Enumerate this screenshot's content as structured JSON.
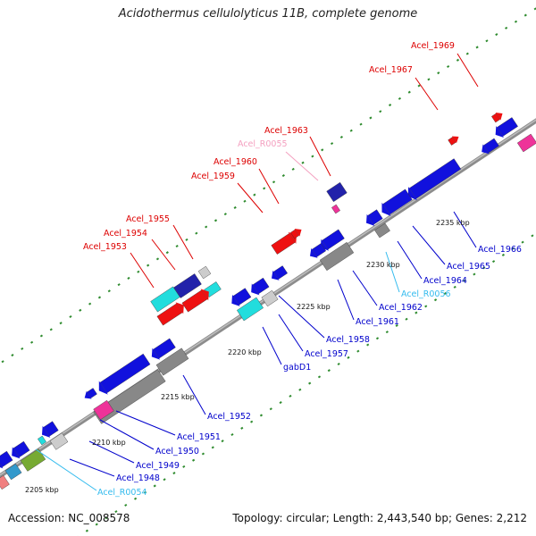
{
  "map": {
    "title": "Acidothermus cellulolyticus 11B, complete genome",
    "accession": "Accession: NC_008578",
    "summary": "Topology: circular; Length: 2,443,540 bp; Genes: 2,212"
  },
  "scale_ticks": [
    "2205 kbp",
    "2210 kbp",
    "2215 kbp",
    "2220 kbp",
    "2225 kbp",
    "2230 kbp",
    "2235 kbp"
  ],
  "labels_upper": [
    {
      "text": "Acel_1953",
      "color": "#dd0000"
    },
    {
      "text": "Acel_1954",
      "color": "#dd0000"
    },
    {
      "text": "Acel_1955",
      "color": "#dd0000"
    },
    {
      "text": "Acel_1959",
      "color": "#dd0000"
    },
    {
      "text": "Acel_1960",
      "color": "#dd0000"
    },
    {
      "text": "Acel_R0055",
      "color": "#f4a0c0"
    },
    {
      "text": "Acel_1963",
      "color": "#dd0000"
    },
    {
      "text": "Acel_1967",
      "color": "#dd0000"
    },
    {
      "text": "Acel_1969",
      "color": "#dd0000"
    }
  ],
  "labels_lower": [
    {
      "text": "Acel_R0054",
      "color": "#33bbee"
    },
    {
      "text": "Acel_1948",
      "color": "#0000cc"
    },
    {
      "text": "Acel_1949",
      "color": "#0000cc"
    },
    {
      "text": "Acel_1950",
      "color": "#0000cc"
    },
    {
      "text": "Acel_1951",
      "color": "#0000cc"
    },
    {
      "text": "Acel_1952",
      "color": "#0000cc"
    },
    {
      "text": "gabD1",
      "color": "#0000cc"
    },
    {
      "text": "Acel_1957",
      "color": "#0000cc"
    },
    {
      "text": "Acel_1958",
      "color": "#0000cc"
    },
    {
      "text": "Acel_1961",
      "color": "#0000cc"
    },
    {
      "text": "Acel_1962",
      "color": "#0000cc"
    },
    {
      "text": "Acel_R0056",
      "color": "#33bbee"
    },
    {
      "text": "Acel_1964",
      "color": "#0000cc"
    },
    {
      "text": "Acel_1965",
      "color": "#0000cc"
    },
    {
      "text": "Acel_1966",
      "color": "#0000cc"
    }
  ],
  "colors": {
    "backbone": "#8c8c8c",
    "forward_cds": "#ee1111",
    "reverse_cds": "#1111dd",
    "gray_feature": "#888888",
    "cyan_feature": "#22dddd",
    "navy_feature": "#2222aa",
    "magenta_feature": "#ee3399",
    "olive_feature": "#77aa33",
    "tick_dots": "#2e8b2e"
  }
}
